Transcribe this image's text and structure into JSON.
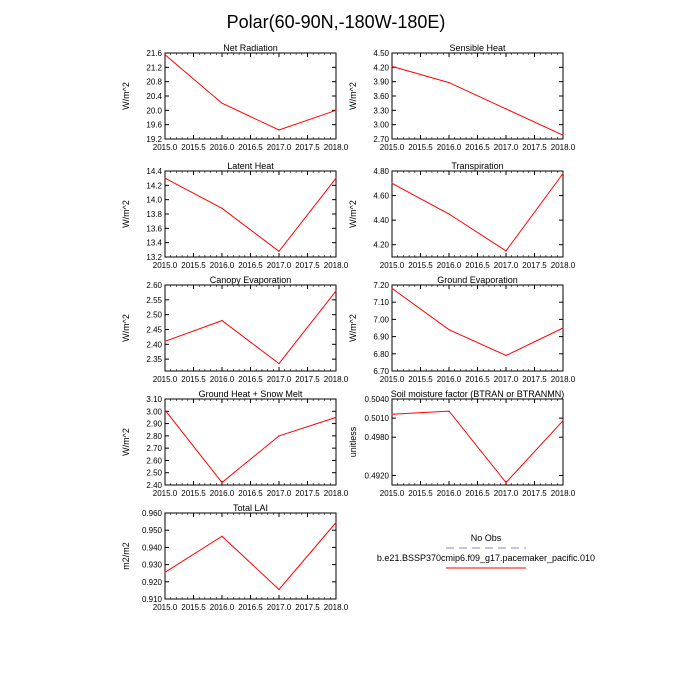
{
  "figure": {
    "title": "Polar(60-90N,-180W-180E)",
    "line_color": "#ff0000",
    "axis_color": "#000000"
  },
  "chart_data": [
    {
      "type": "line",
      "title": "Net Radiation",
      "xlabel": "",
      "ylabel": "W/m^2",
      "x": [
        2015.0,
        2016.0,
        2017.0,
        2018.0
      ],
      "values": [
        21.55,
        20.2,
        19.45,
        20.0
      ],
      "xlim": [
        2015.0,
        2018.0
      ],
      "ylim": [
        19.2,
        21.6
      ],
      "xticks": [
        "2015.0",
        "2015.5",
        "2016.0",
        "2016.5",
        "2017.0",
        "2017.5",
        "2018.0"
      ],
      "yticks": [
        {
          "v": 19.2,
          "l": "19.2"
        },
        {
          "v": 19.6,
          "l": "19.6"
        },
        {
          "v": 20.0,
          "l": "20.0"
        },
        {
          "v": 20.4,
          "l": "20.4"
        },
        {
          "v": 20.8,
          "l": "20.8"
        },
        {
          "v": 21.2,
          "l": "21.2"
        },
        {
          "v": 21.6,
          "l": "21.6"
        }
      ]
    },
    {
      "type": "line",
      "title": "Sensible Heat",
      "xlabel": "",
      "ylabel": "W/m^2",
      "x": [
        2015.0,
        2016.0,
        2017.0,
        2018.0
      ],
      "values": [
        4.22,
        3.88,
        3.33,
        2.78
      ],
      "xlim": [
        2015.0,
        2018.0
      ],
      "ylim": [
        2.7,
        4.5
      ],
      "xticks": [
        "2015.0",
        "2015.5",
        "2016.0",
        "2016.5",
        "2017.0",
        "2017.5",
        "2018.0"
      ],
      "yticks": [
        {
          "v": 2.7,
          "l": "2.70"
        },
        {
          "v": 3.0,
          "l": "3.00"
        },
        {
          "v": 3.3,
          "l": "3.30"
        },
        {
          "v": 3.6,
          "l": "3.60"
        },
        {
          "v": 3.9,
          "l": "3.90"
        },
        {
          "v": 4.2,
          "l": "4.20"
        },
        {
          "v": 4.5,
          "l": "4.50"
        }
      ]
    },
    {
      "type": "line",
      "title": "Latent Heat",
      "xlabel": "",
      "ylabel": "W/m^2",
      "x": [
        2015.0,
        2016.0,
        2017.0,
        2018.0
      ],
      "values": [
        14.3,
        13.88,
        13.28,
        14.3
      ],
      "xlim": [
        2015.0,
        2018.0
      ],
      "ylim": [
        13.2,
        14.4
      ],
      "xticks": [
        "2015.0",
        "2015.5",
        "2016.0",
        "2016.5",
        "2017.0",
        "2017.5",
        "2018.0"
      ],
      "yticks": [
        {
          "v": 13.2,
          "l": "13.2"
        },
        {
          "v": 13.4,
          "l": "13.4"
        },
        {
          "v": 13.6,
          "l": "13.6"
        },
        {
          "v": 13.8,
          "l": "13.8"
        },
        {
          "v": 14.0,
          "l": "14.0"
        },
        {
          "v": 14.2,
          "l": "14.2"
        },
        {
          "v": 14.4,
          "l": "14.4"
        }
      ]
    },
    {
      "type": "line",
      "title": "Transpiration",
      "xlabel": "",
      "ylabel": "W/m^2",
      "x": [
        2015.0,
        2016.0,
        2017.0,
        2018.0
      ],
      "values": [
        4.7,
        4.45,
        4.15,
        4.78
      ],
      "xlim": [
        2015.0,
        2018.0
      ],
      "ylim": [
        4.1,
        4.8
      ],
      "xticks": [
        "2015.0",
        "2015.5",
        "2016.0",
        "2016.5",
        "2017.0",
        "2017.5",
        "2018.0"
      ],
      "yticks": [
        {
          "v": 4.2,
          "l": "4.20"
        },
        {
          "v": 4.4,
          "l": "4.40"
        },
        {
          "v": 4.6,
          "l": "4.60"
        },
        {
          "v": 4.8,
          "l": "4.80"
        }
      ]
    },
    {
      "type": "line",
      "title": "Canopy Evaporation",
      "xlabel": "",
      "ylabel": "W/m^2",
      "x": [
        2015.0,
        2016.0,
        2017.0,
        2018.0
      ],
      "values": [
        2.41,
        2.48,
        2.335,
        2.58
      ],
      "xlim": [
        2015.0,
        2018.0
      ],
      "ylim": [
        2.31,
        2.6
      ],
      "xticks": [
        "2015.0",
        "2015.5",
        "2016.0",
        "2016.5",
        "2017.0",
        "2017.5",
        "2018.0"
      ],
      "yticks": [
        {
          "v": 2.35,
          "l": "2.35"
        },
        {
          "v": 2.4,
          "l": "2.40"
        },
        {
          "v": 2.45,
          "l": "2.45"
        },
        {
          "v": 2.5,
          "l": "2.50"
        },
        {
          "v": 2.55,
          "l": "2.55"
        },
        {
          "v": 2.6,
          "l": "2.60"
        }
      ]
    },
    {
      "type": "line",
      "title": "Ground Evaporation",
      "xlabel": "",
      "ylabel": "W/m^2",
      "x": [
        2015.0,
        2016.0,
        2017.0,
        2018.0
      ],
      "values": [
        7.18,
        6.94,
        6.79,
        6.95
      ],
      "xlim": [
        2015.0,
        2018.0
      ],
      "ylim": [
        6.7,
        7.2
      ],
      "xticks": [
        "2015.0",
        "2015.5",
        "2016.0",
        "2016.5",
        "2017.0",
        "2017.5",
        "2018.0"
      ],
      "yticks": [
        {
          "v": 6.7,
          "l": "6.70"
        },
        {
          "v": 6.8,
          "l": "6.80"
        },
        {
          "v": 6.9,
          "l": "6.90"
        },
        {
          "v": 7.0,
          "l": "7.00"
        },
        {
          "v": 7.1,
          "l": "7.10"
        },
        {
          "v": 7.2,
          "l": "7.20"
        }
      ]
    },
    {
      "type": "line",
      "title": "Ground Heat + Snow Melt",
      "xlabel": "",
      "ylabel": "W/m^2",
      "x": [
        2015.0,
        2016.0,
        2017.0,
        2018.0
      ],
      "values": [
        3.01,
        2.42,
        2.8,
        2.95
      ],
      "xlim": [
        2015.0,
        2018.0
      ],
      "ylim": [
        2.4,
        3.1
      ],
      "xticks": [
        "2015.0",
        "2015.5",
        "2016.0",
        "2016.5",
        "2017.0",
        "2017.5",
        "2018.0"
      ],
      "yticks": [
        {
          "v": 2.4,
          "l": "2.40"
        },
        {
          "v": 2.5,
          "l": "2.50"
        },
        {
          "v": 2.6,
          "l": "2.60"
        },
        {
          "v": 2.7,
          "l": "2.70"
        },
        {
          "v": 2.8,
          "l": "2.80"
        },
        {
          "v": 2.9,
          "l": "2.90"
        },
        {
          "v": 3.0,
          "l": "3.00"
        },
        {
          "v": 3.1,
          "l": "3.10"
        }
      ]
    },
    {
      "type": "line",
      "title": "Soil moisture factor (BTRAN or BTRANMN)",
      "xlabel": "",
      "ylabel": "unitless",
      "x": [
        2015.0,
        2016.0,
        2017.0,
        2018.0
      ],
      "values": [
        0.5016,
        0.5021,
        0.4909,
        0.5006
      ],
      "xlim": [
        2015.0,
        2018.0
      ],
      "ylim": [
        0.4905,
        0.504
      ],
      "xticks": [
        "2015.0",
        "2015.5",
        "2016.0",
        "2016.5",
        "2017.0",
        "2017.5",
        "2018.0"
      ],
      "yticks": [
        {
          "v": 0.492,
          "l": "0.4920"
        },
        {
          "v": 0.498,
          "l": "0.4980"
        },
        {
          "v": 0.501,
          "l": "0.5010"
        },
        {
          "v": 0.504,
          "l": "0.5040"
        }
      ]
    },
    {
      "type": "line",
      "title": "Total LAI",
      "xlabel": "",
      "ylabel": "m2/m2",
      "x": [
        2015.0,
        2016.0,
        2017.0,
        2018.0
      ],
      "values": [
        0.9255,
        0.9465,
        0.9155,
        0.9545
      ],
      "xlim": [
        2015.0,
        2018.0
      ],
      "ylim": [
        0.91,
        0.96
      ],
      "xticks": [
        "2015.0",
        "2015.5",
        "2016.0",
        "2016.5",
        "2017.0",
        "2017.5",
        "2018.0"
      ],
      "yticks": [
        {
          "v": 0.91,
          "l": "0.910"
        },
        {
          "v": 0.92,
          "l": "0.920"
        },
        {
          "v": 0.93,
          "l": "0.930"
        },
        {
          "v": 0.94,
          "l": "0.940"
        },
        {
          "v": 0.95,
          "l": "0.950"
        },
        {
          "v": 0.96,
          "l": "0.960"
        }
      ]
    }
  ],
  "legend": {
    "entries": [
      {
        "label": "No Obs",
        "color": "#b0b0dd",
        "dashed": true
      },
      {
        "label": "b.e21.BSSP370cmip6.f09_g17.pacemaker_pacific.010",
        "color": "#ff0000",
        "dashed": false
      }
    ]
  }
}
